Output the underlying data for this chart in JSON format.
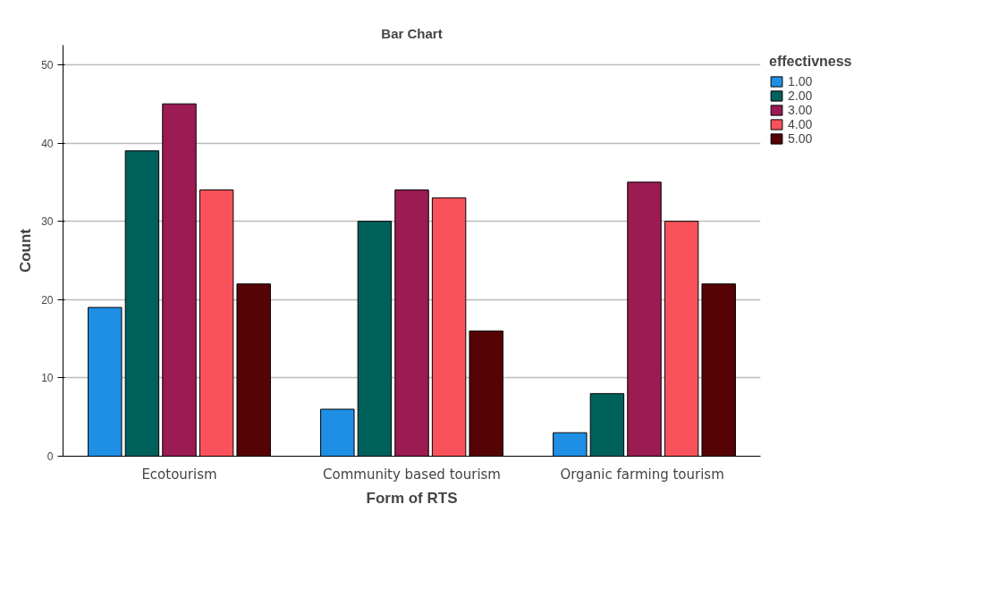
{
  "chart_data": {
    "type": "bar",
    "title": "Bar Chart",
    "xlabel": "Form of RTS",
    "ylabel": "Count",
    "legend_title": "effectivness",
    "categories": [
      "Ecotourism",
      "Community based tourism",
      "Organic farming  tourism"
    ],
    "series": [
      {
        "name": "1.00",
        "color": "#1f8fe5",
        "values": [
          19,
          6,
          3
        ]
      },
      {
        "name": "2.00",
        "color": "#00605c",
        "values": [
          39,
          30,
          8
        ]
      },
      {
        "name": "3.00",
        "color": "#9b1b52",
        "values": [
          45,
          34,
          35
        ]
      },
      {
        "name": "4.00",
        "color": "#f9525b",
        "values": [
          34,
          33,
          30
        ]
      },
      {
        "name": "5.00",
        "color": "#560306",
        "values": [
          22,
          16,
          22
        ]
      }
    ],
    "ylim": [
      0,
      52.5
    ],
    "yticks": [
      0,
      10,
      20,
      30,
      40,
      50
    ],
    "grid": "y",
    "legend": "right"
  }
}
